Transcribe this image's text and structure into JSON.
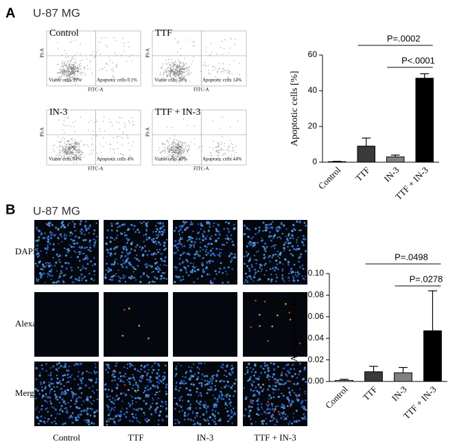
{
  "panel_a": {
    "letter": "A",
    "cell_line": "U-87 MG",
    "x_axis": "FITC-A",
    "y_axis": "PI-A",
    "flow_plots": [
      {
        "label": "Control",
        "viable": "Viable cells 95%",
        "apoptotic": "Apoptotic cells 0.1%"
      },
      {
        "label": "TTF",
        "viable": "Viable cells 78%",
        "apoptotic": "Apoptotic cells 14%"
      },
      {
        "label": "IN-3",
        "viable": "Viable cells 84%",
        "apoptotic": "Apoptotic cells 4%"
      },
      {
        "label": "TTF + IN-3",
        "viable": "Viable cells 49%",
        "apoptotic": "Apoptotic cells 44%"
      }
    ]
  },
  "panel_b": {
    "letter": "B",
    "cell_line": "U-87 MG",
    "rows": [
      "DAPI",
      "Alexa",
      "Merge"
    ],
    "columns": [
      "Control",
      "TTF",
      "IN-3",
      "TTF + IN-3"
    ]
  },
  "chart_data": [
    {
      "type": "bar",
      "ylabel": "Apoptotic cells [%]",
      "categories": [
        "Control",
        "TTF",
        "IN-3",
        "TTF + IN-3"
      ],
      "values": [
        0.3,
        9,
        3,
        47
      ],
      "errors": [
        0.2,
        4.5,
        1,
        2.5
      ],
      "colors": [
        "#ffffff",
        "#3a3a3a",
        "#808080",
        "#000000"
      ],
      "ylim": [
        0,
        60
      ],
      "yticks": [
        0,
        20,
        40,
        60
      ],
      "comparisons": [
        {
          "from": "TTF",
          "to": "TTF + IN-3",
          "label": "P=.0002"
        },
        {
          "from": "IN-3",
          "to": "TTF + IN-3",
          "label": "P<.0001"
        }
      ]
    },
    {
      "type": "bar",
      "ylabel": "Alexa/DAPI-ratio",
      "categories": [
        "Control",
        "TTF",
        "IN-3",
        "TTF + IN-3"
      ],
      "values": [
        0.001,
        0.009,
        0.008,
        0.047
      ],
      "errors": [
        0.001,
        0.005,
        0.005,
        0.037
      ],
      "colors": [
        "#ffffff",
        "#3a3a3a",
        "#808080",
        "#000000"
      ],
      "ylim": [
        0,
        0.1
      ],
      "yticks": [
        {
          "value": 0,
          "label": "0.00"
        },
        {
          "value": 0.02,
          "label": "0.02"
        },
        {
          "value": 0.04,
          "label": "0.04"
        },
        {
          "value": 0.06,
          "label": "0.06"
        },
        {
          "value": 0.08,
          "label": "0.08"
        },
        {
          "value": 0.1,
          "label": "0.10"
        }
      ],
      "comparisons": [
        {
          "from": "TTF",
          "to": "TTF + IN-3",
          "label": "P=.0498"
        },
        {
          "from": "IN-3",
          "to": "TTF + IN-3",
          "label": "P=.0278"
        }
      ]
    }
  ]
}
